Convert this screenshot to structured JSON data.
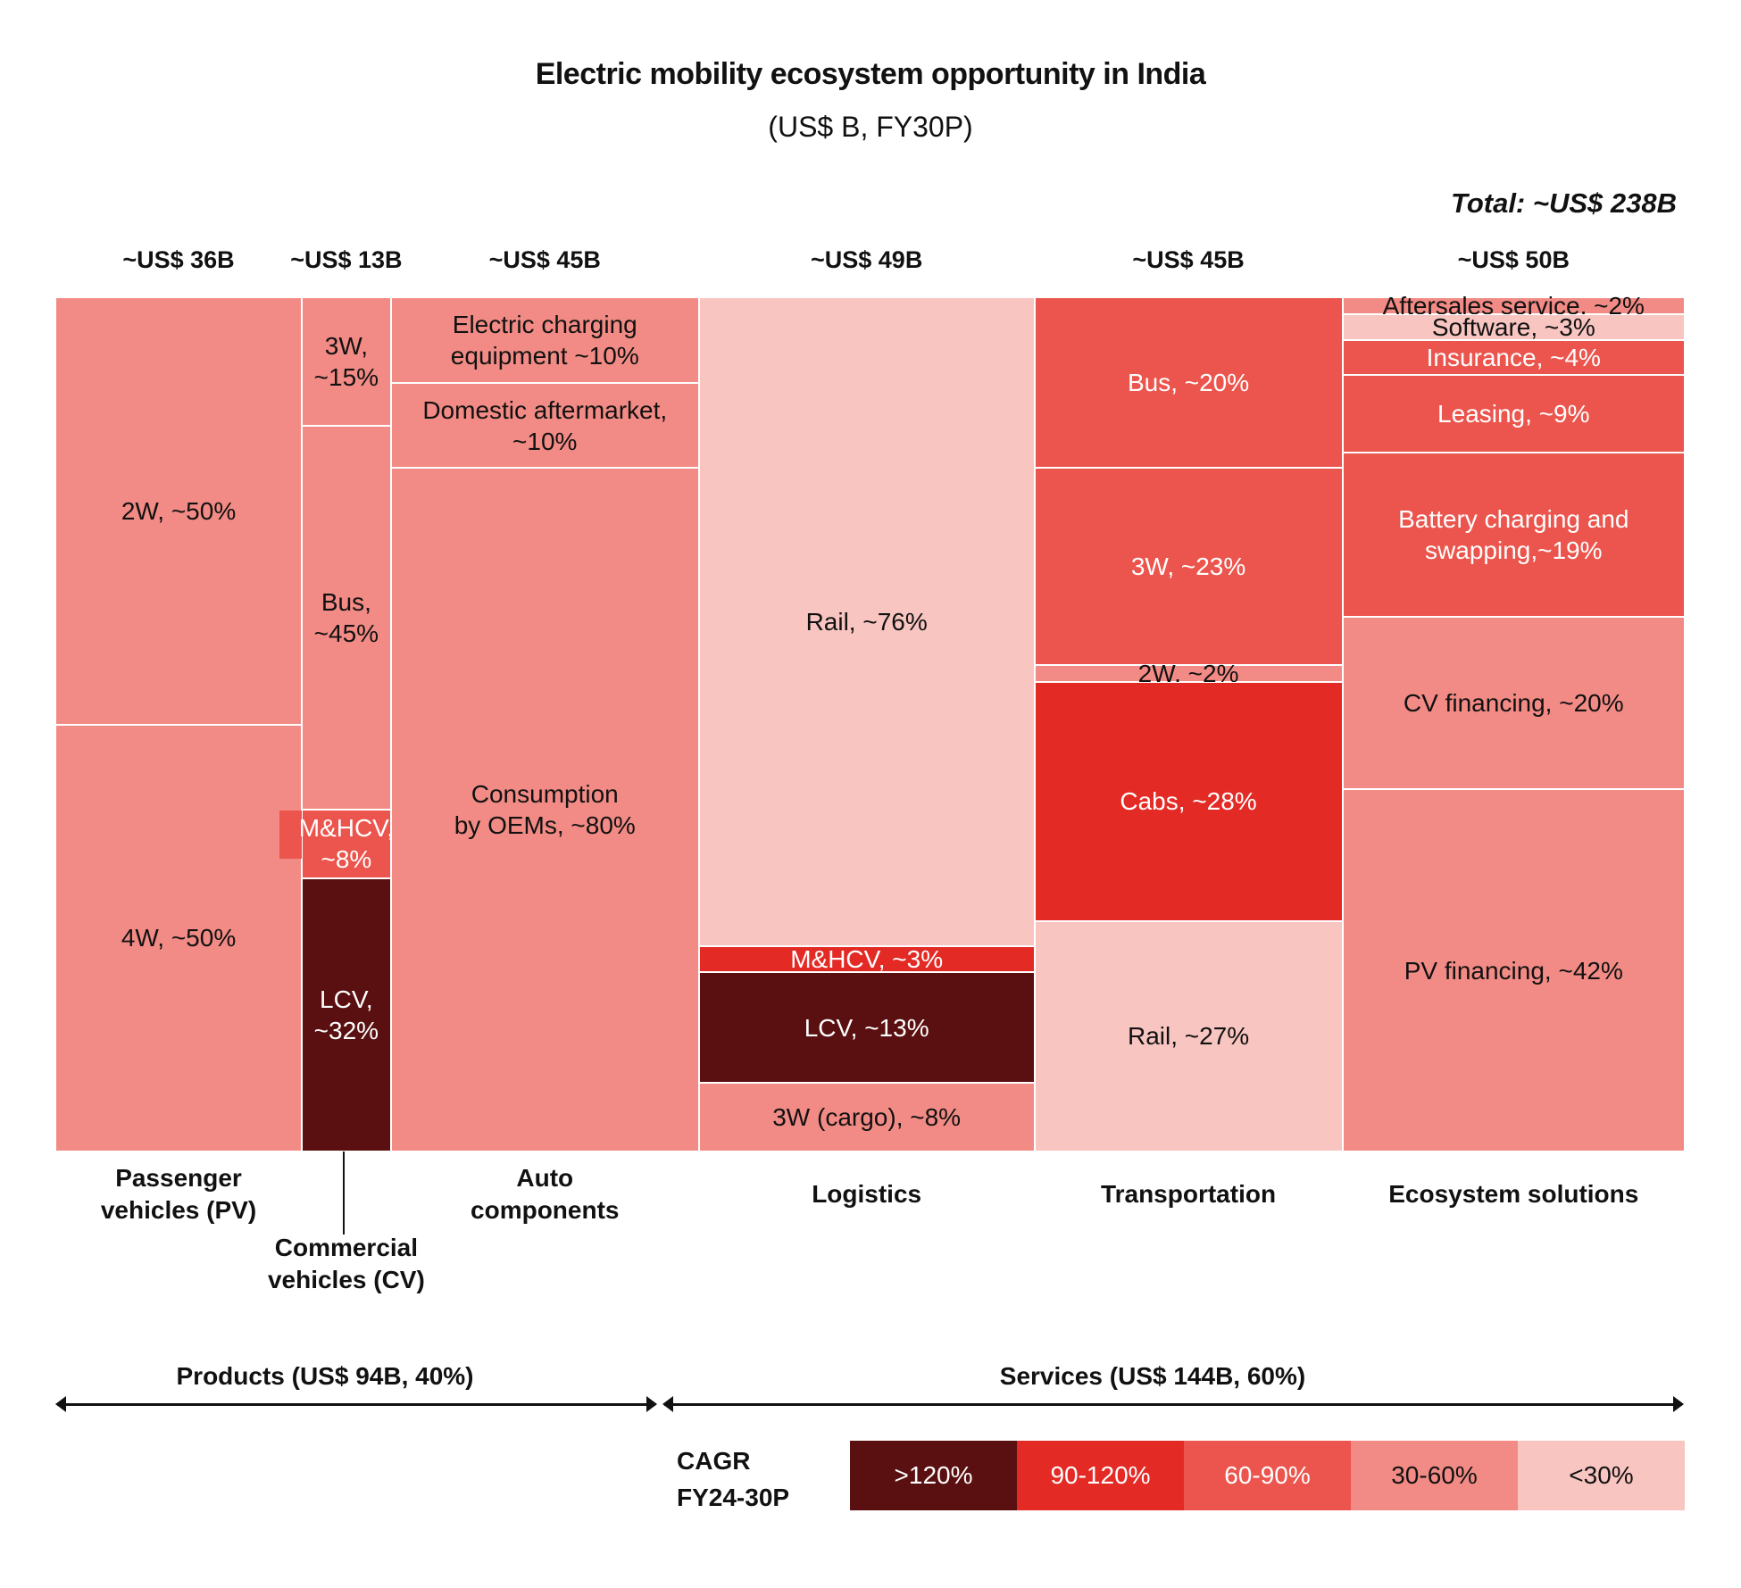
{
  "colors": {
    "gt120": "#5a1010",
    "c90_120": "#e32a25",
    "c60_90": "#eb554d",
    "c30_60": "#f28b85",
    "lt30": "#f8c5c1"
  },
  "chart_data": {
    "type": "mekko",
    "title": "Electric mobility ecosystem opportunity in India",
    "subtitle": "(US$ B, FY30P)",
    "total_label": "Total: ~US$ 238B",
    "unit": "US$ B",
    "segments": [
      {
        "name": "Passenger vehicles (PV)",
        "label_lines": [
          "Passenger",
          "vehicles (PV)"
        ],
        "value": 36,
        "total_label": "~US$ 36B",
        "group": "products",
        "items": [
          {
            "label": "2W, ~50%",
            "share": 50,
            "cagr": "30-60%"
          },
          {
            "label": "4W, ~50%",
            "share": 50,
            "cagr": "30-60%"
          }
        ]
      },
      {
        "name": "Commercial vehicles (CV)",
        "label_lines": [
          "Commercial",
          "vehicles (CV)"
        ],
        "value": 13,
        "total_label": "~US$ 13B",
        "group": "products",
        "items": [
          {
            "label": "3W, ~15%",
            "share": 15,
            "cagr": "30-60%"
          },
          {
            "label": "Bus, ~45%",
            "share": 45,
            "cagr": "30-60%"
          },
          {
            "label": "M&HCV, ~8%",
            "share": 8,
            "cagr": "60-90%"
          },
          {
            "label": "LCV, ~32%",
            "share": 32,
            "cagr": ">120%"
          }
        ]
      },
      {
        "name": "Auto components",
        "label_lines": [
          "Auto",
          "components"
        ],
        "value": 45,
        "total_label": "~US$ 45B",
        "group": "products",
        "items": [
          {
            "label": "Electric charging equipment ~10%",
            "share": 10,
            "cagr": "30-60%"
          },
          {
            "label": "Domestic aftermarket, ~10%",
            "share": 10,
            "cagr": "30-60%"
          },
          {
            "label": "Consumption by OEMs, ~80%",
            "share": 80,
            "cagr": "30-60%"
          }
        ]
      },
      {
        "name": "Logistics",
        "label_lines": [
          "Logistics"
        ],
        "value": 49,
        "total_label": "~US$ 49B",
        "group": "services",
        "items": [
          {
            "label": "Rail, ~76%",
            "share": 76,
            "cagr": "<30%"
          },
          {
            "label": "M&HCV, ~3%",
            "share": 3,
            "cagr": "90-120%"
          },
          {
            "label": "LCV, ~13%",
            "share": 13,
            "cagr": ">120%"
          },
          {
            "label": "3W (cargo), ~8%",
            "share": 8,
            "cagr": "30-60%"
          }
        ]
      },
      {
        "name": "Transportation",
        "label_lines": [
          "Transportation"
        ],
        "value": 45,
        "total_label": "~US$ 45B",
        "group": "services",
        "items": [
          {
            "label": "Bus, ~20%",
            "share": 20,
            "cagr": "60-90%"
          },
          {
            "label": "3W, ~23%",
            "share": 23,
            "cagr": "60-90%"
          },
          {
            "label": "2W, ~2%",
            "share": 2,
            "cagr": "30-60%"
          },
          {
            "label": "Cabs, ~28%",
            "share": 28,
            "cagr": "90-120%"
          },
          {
            "label": "Rail, ~27%",
            "share": 27,
            "cagr": "<30%"
          }
        ]
      },
      {
        "name": "Ecosystem solutions",
        "label_lines": [
          "Ecosystem solutions"
        ],
        "value": 50,
        "total_label": "~US$ 50B",
        "group": "services",
        "items": [
          {
            "label": "Aftersales service, ~2%",
            "share": 2,
            "cagr": "30-60%"
          },
          {
            "label": "Software, ~3%",
            "share": 3,
            "cagr": "<30%"
          },
          {
            "label": "Insurance, ~4%",
            "share": 4,
            "cagr": "60-90%"
          },
          {
            "label": "Leasing, ~9%",
            "share": 9,
            "cagr": "60-90%"
          },
          {
            "label": "Battery charging and swapping,~19%",
            "share": 19,
            "cagr": "60-90%"
          },
          {
            "label": "CV financing, ~20%",
            "share": 20,
            "cagr": "30-60%"
          },
          {
            "label": "PV financing, ~42%",
            "share": 42,
            "cagr": "30-60%"
          }
        ]
      }
    ],
    "groups": [
      {
        "key": "products",
        "label": "Products (US$ 94B, 40%)",
        "value": 94,
        "share": 40
      },
      {
        "key": "services",
        "label": "Services (US$ 144B, 60%)",
        "value": 144,
        "share": 60
      }
    ],
    "legend": {
      "title_lines": [
        "CAGR",
        "FY24-30P"
      ],
      "items": [
        {
          "label": ">120%",
          "key": "gt120"
        },
        {
          "label": "90-120%",
          "key": "c90_120"
        },
        {
          "label": "60-90%",
          "key": "c60_90"
        },
        {
          "label": "30-60%",
          "key": "c30_60"
        },
        {
          "label": "<30%",
          "key": "lt30"
        }
      ]
    }
  }
}
